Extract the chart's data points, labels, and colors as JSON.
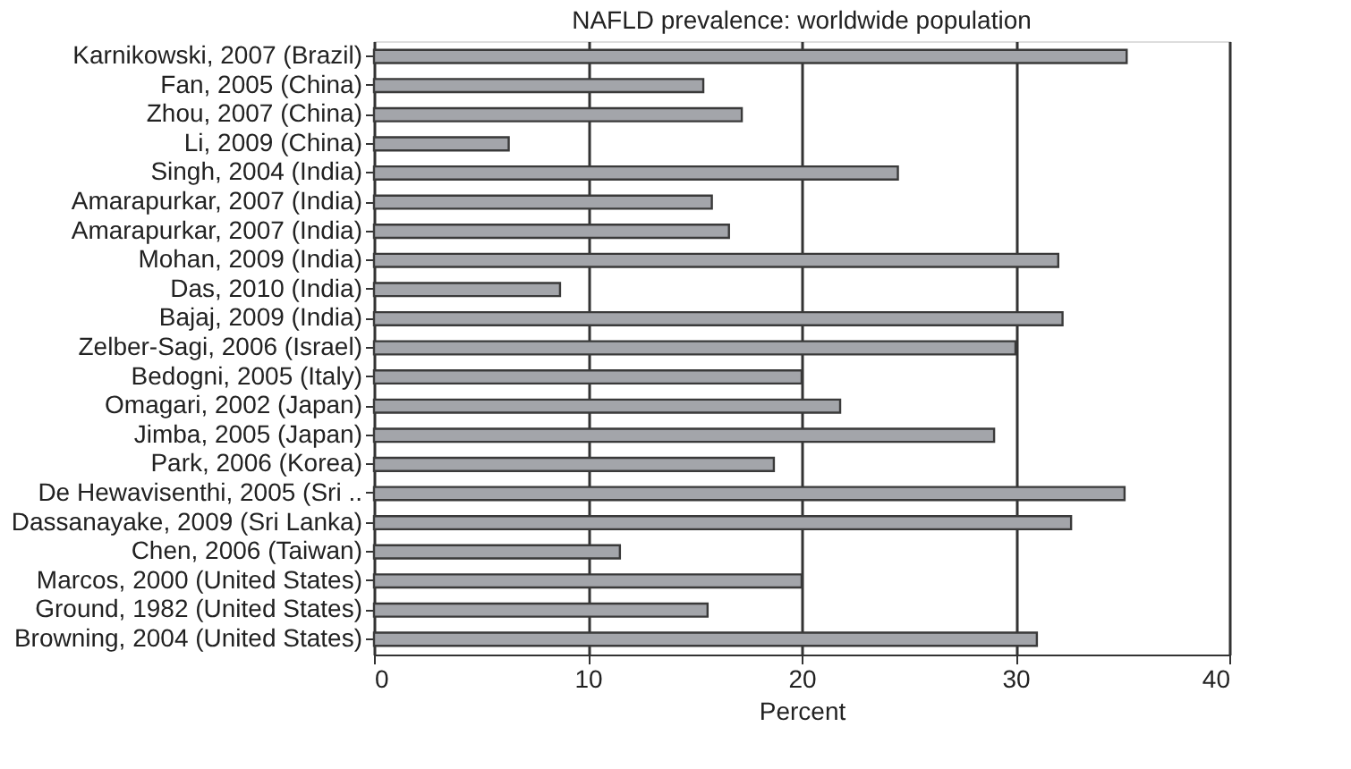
{
  "chart_data": {
    "type": "bar",
    "orientation": "horizontal",
    "title": "NAFLD prevalence: worldwide population",
    "xlabel": "Percent",
    "categories": [
      "Karnikowski, 2007 (Brazil)",
      "Fan, 2005 (China)",
      "Zhou, 2007 (China)",
      "Li, 2009 (China)",
      "Singh, 2004 (India)",
      "Amarapurkar, 2007 (India)",
      "Amarapurkar, 2007 (India)",
      "Mohan, 2009 (India)",
      "Das, 2010 (India)",
      "Bajaj, 2009 (India)",
      "Zelber-Sagi, 2006 (Israel)",
      "Bedogni, 2005 (Italy)",
      "Omagari, 2002 (Japan)",
      "Jimba, 2005 (Japan)",
      "Park, 2006 (Korea)",
      "De Hewavisenthi, 2005 (Sri ..",
      "Dassanayake, 2009 (Sri Lanka)",
      "Chen, 2006 (Taiwan)",
      "Marcos, 2000 (United States)",
      "Ground, 1982 (United States)",
      "Browning, 2004 (United States)"
    ],
    "values": [
      35.2,
      15.4,
      17.2,
      6.3,
      24.5,
      15.8,
      16.6,
      32.0,
      8.7,
      32.2,
      30.0,
      20.0,
      21.8,
      29.0,
      18.7,
      35.1,
      32.6,
      11.5,
      20.0,
      15.6,
      31.0
    ],
    "color": "#a3a5aa",
    "xlim": [
      0,
      40
    ],
    "xticks": [
      0,
      10,
      20,
      30,
      40
    ],
    "grid": "x"
  }
}
